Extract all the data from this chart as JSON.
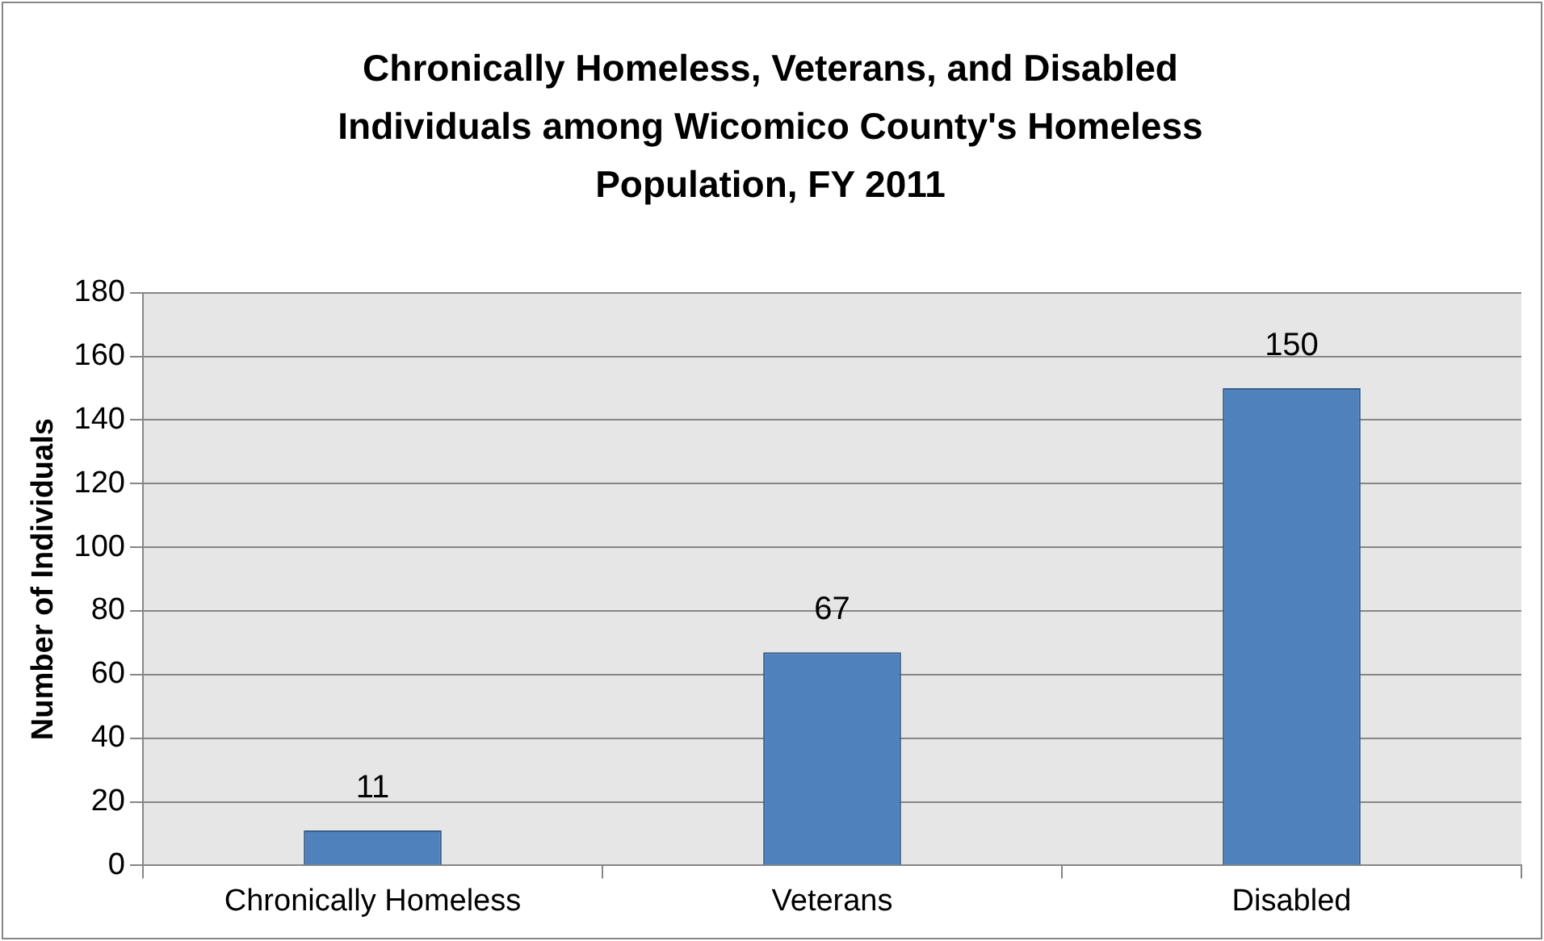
{
  "chart_data": {
    "type": "bar",
    "title": "Chronically Homeless, Veterans, and Disabled Individuals among Wicomico County's Homeless Population, FY 2011",
    "ylabel": "Number of Individuals",
    "categories": [
      "Chronically Homeless",
      "Veterans",
      "Disabled"
    ],
    "values": [
      11,
      67,
      150
    ],
    "color": "#4f81bd",
    "ylim": [
      0,
      180
    ],
    "yticks": [
      0,
      20,
      40,
      60,
      80,
      100,
      120,
      140,
      160,
      180
    ],
    "grid": "y",
    "legend": false,
    "data_labels": true
  }
}
